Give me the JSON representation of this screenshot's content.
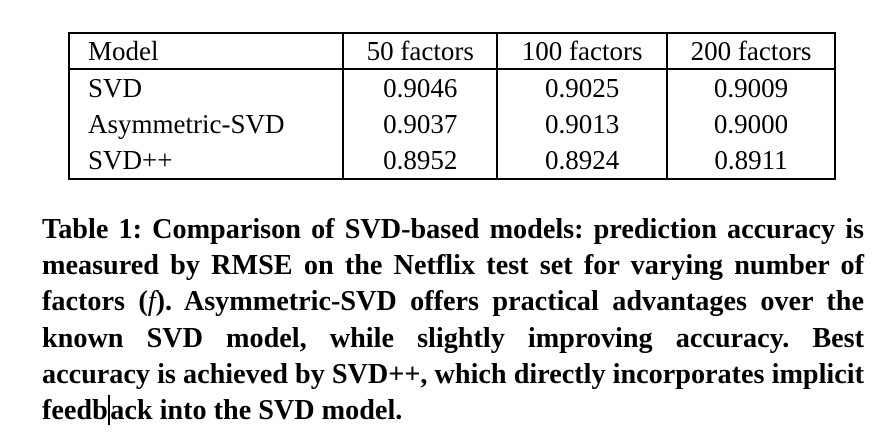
{
  "table": {
    "headers": [
      "Model",
      "50 factors",
      "100 factors",
      "200 factors"
    ],
    "rows": [
      {
        "model": "SVD",
        "f50": "0.9046",
        "f100": "0.9025",
        "f200": "0.9009"
      },
      {
        "model": "Asymmetric-SVD",
        "f50": "0.9037",
        "f100": "0.9013",
        "f200": "0.9000"
      },
      {
        "model": "SVD++",
        "f50": "0.8952",
        "f100": "0.8924",
        "f200": "0.8911"
      }
    ]
  },
  "caption": {
    "part1": "Table 1: Comparison of SVD-based models: prediction accu­racy is measured by RMSE on the Netflix test set for varying number of factors (",
    "var": "f",
    "part2": "). Asymmetric-SVD offers practical ad­vantages over the known SVD model, while slightly improving accuracy. Best accuracy is achieved by SVD++, which directly incorporates implicit feedb",
    "part3": "ack into the SVD model."
  }
}
